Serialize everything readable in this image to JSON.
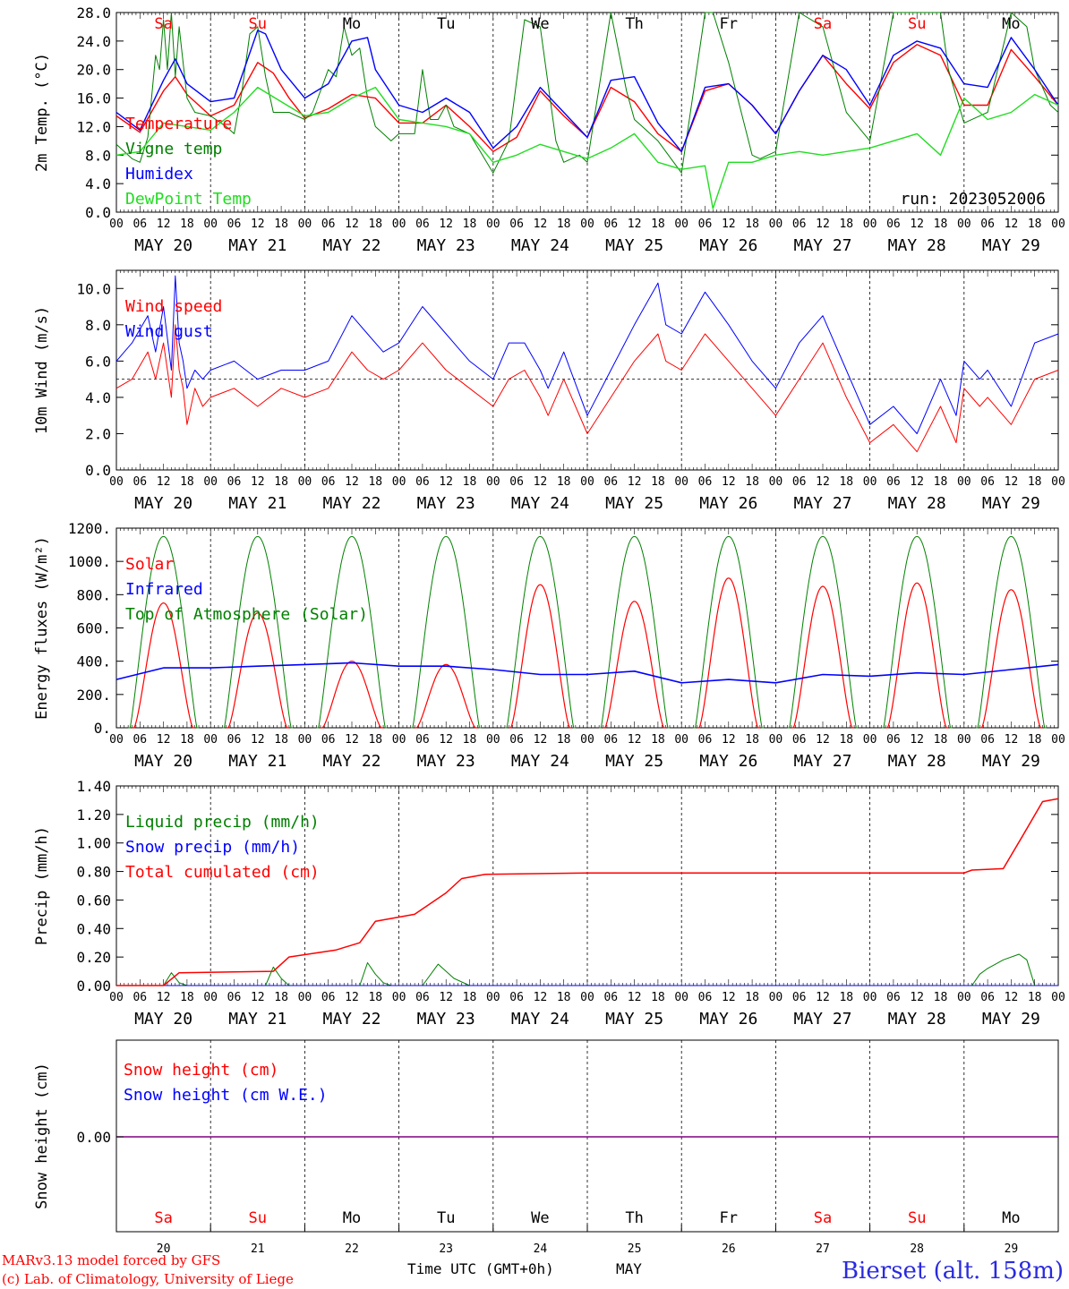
{
  "colors": {
    "red": "#ff0000",
    "blue": "#0000ff",
    "green": "#008000",
    "lime": "#22dd22",
    "purple": "#800080",
    "black": "#000000",
    "station": "#2a2adf"
  },
  "days": [
    "Sa",
    "Su",
    "Mo",
    "Tu",
    "We",
    "Th",
    "Fr",
    "Sa",
    "Su",
    "Mo"
  ],
  "day_colors": [
    "#ff0000",
    "#ff0000",
    "#000000",
    "#000000",
    "#000000",
    "#000000",
    "#000000",
    "#ff0000",
    "#ff0000",
    "#000000"
  ],
  "dates": [
    "MAY 20",
    "MAY 21",
    "MAY 22",
    "MAY 23",
    "MAY 24",
    "MAY 25",
    "MAY 26",
    "MAY 27",
    "MAY 28",
    "MAY 29"
  ],
  "day_numbers": [
    "20",
    "21",
    "22",
    "23",
    "24",
    "25",
    "26",
    "27",
    "28",
    "29"
  ],
  "hour_ticks": [
    "00",
    "06",
    "12",
    "18"
  ],
  "x_axis_title": "Time UTC (GMT+0h)",
  "month": "MAY",
  "station": "Bierset (alt. 158m)",
  "footer_line1": "MARv3.13 model forced by GFS",
  "footer_line2": "(c) Lab. of Climatology, University of Liege",
  "chart_data": [
    {
      "type": "line",
      "ylabel": "2m Temp. (°C)",
      "ylim": [
        0,
        28
      ],
      "yticks": [
        "0.0",
        "4.0",
        "8.0",
        "12.0",
        "16.0",
        "20.0",
        "24.0",
        "28.0"
      ],
      "run_label": "run: 2023052006",
      "x_unit": "hours since 2023-05-20 00 UTC",
      "series": [
        {
          "name": "Temperature",
          "color": "red",
          "x": [
            0,
            6,
            12,
            15,
            18,
            24,
            30,
            36,
            40,
            44,
            48,
            54,
            60,
            66,
            72,
            78,
            84,
            90,
            96,
            102,
            108,
            114,
            120,
            126,
            132,
            138,
            144,
            150,
            156,
            162,
            168,
            174,
            180,
            186,
            192,
            198,
            204,
            210,
            216,
            222,
            228,
            234,
            240
          ],
          "y": [
            13.5,
            11.2,
            17.0,
            19.0,
            16.5,
            13.5,
            15.0,
            21.0,
            19.5,
            16.0,
            13.2,
            14.5,
            16.5,
            16.0,
            12.5,
            12.5,
            15.0,
            12.0,
            8.5,
            10.5,
            17.0,
            13.5,
            10.5,
            17.5,
            15.5,
            11.0,
            8.5,
            17.0,
            18.0,
            15.0,
            11.0,
            17.0,
            22.0,
            18.0,
            14.5,
            21.0,
            23.5,
            22.0,
            15.0,
            15.0,
            22.8,
            19.0,
            15.0
          ]
        },
        {
          "name": "Vigne temp",
          "color": "green",
          "x": [
            0,
            4,
            6,
            8,
            10,
            11,
            12,
            13,
            14,
            15,
            16,
            18,
            20,
            24,
            28,
            30,
            32,
            34,
            36,
            38,
            40,
            44,
            48,
            50,
            54,
            56,
            58,
            60,
            62,
            64,
            66,
            68,
            70,
            72,
            76,
            78,
            80,
            82,
            84,
            86,
            90,
            96,
            100,
            104,
            108,
            112,
            114,
            118,
            120,
            126,
            130,
            132,
            134,
            138,
            144,
            150,
            152,
            156,
            162,
            164,
            168,
            174,
            180,
            184,
            186,
            192,
            198,
            204,
            210,
            212,
            216,
            222,
            228,
            232,
            234,
            238,
            240
          ],
          "y": [
            9.5,
            7.5,
            7.0,
            10.5,
            22.0,
            20.0,
            27.0,
            20.0,
            28.0,
            19.0,
            26.0,
            16.0,
            14.0,
            13.5,
            12.0,
            11.0,
            17.0,
            25.0,
            26.0,
            19.0,
            14.0,
            14.0,
            13.0,
            14.0,
            20.0,
            19.0,
            26.0,
            22.0,
            23.0,
            16.0,
            12.0,
            11.0,
            10.0,
            11.0,
            11.0,
            20.0,
            13.0,
            13.0,
            15.0,
            12.0,
            11.0,
            5.5,
            10.0,
            27.0,
            26.0,
            10.0,
            7.0,
            8.0,
            7.0,
            28.0,
            17.0,
            13.0,
            12.0,
            10.0,
            5.5,
            28.0,
            28.0,
            21.0,
            8.0,
            7.5,
            8.5,
            28.0,
            26.0,
            18.0,
            14.0,
            10.0,
            28.0,
            28.0,
            28.0,
            20.0,
            12.5,
            14.0,
            28.0,
            26.0,
            20.0,
            15.0,
            14.0
          ]
        },
        {
          "name": "Humidex",
          "color": "blue",
          "x": [
            0,
            6,
            12,
            15,
            18,
            24,
            30,
            36,
            38,
            42,
            48,
            54,
            60,
            64,
            66,
            72,
            78,
            84,
            90,
            96,
            102,
            108,
            114,
            120,
            126,
            132,
            138,
            144,
            150,
            156,
            162,
            168,
            174,
            180,
            186,
            192,
            198,
            204,
            210,
            216,
            222,
            228,
            234,
            240
          ],
          "y": [
            14.0,
            11.5,
            18.5,
            21.5,
            18.0,
            15.5,
            16.0,
            25.5,
            25.0,
            20.0,
            16.0,
            18.0,
            24.0,
            24.5,
            20.0,
            15.0,
            14.0,
            16.0,
            14.0,
            9.0,
            12.0,
            17.5,
            14.0,
            10.5,
            18.5,
            19.0,
            12.5,
            8.5,
            17.5,
            18.0,
            15.0,
            11.0,
            17.0,
            22.0,
            20.0,
            15.0,
            22.0,
            24.0,
            23.0,
            18.0,
            17.5,
            24.5,
            20.0,
            15.0
          ]
        },
        {
          "name": "DewPoint Temp",
          "color": "lime",
          "x": [
            0,
            6,
            12,
            18,
            24,
            30,
            36,
            42,
            48,
            54,
            60,
            66,
            72,
            78,
            84,
            90,
            96,
            102,
            108,
            114,
            120,
            126,
            132,
            138,
            144,
            150,
            152,
            156,
            162,
            168,
            174,
            180,
            186,
            192,
            198,
            204,
            210,
            216,
            222,
            228,
            234,
            240
          ],
          "y": [
            8.0,
            8.5,
            12.5,
            12.0,
            11.5,
            14.0,
            17.5,
            15.5,
            13.5,
            14.0,
            16.0,
            17.5,
            13.0,
            12.5,
            12.0,
            11.0,
            7.0,
            8.0,
            9.5,
            8.5,
            7.5,
            9.0,
            11.0,
            7.0,
            6.0,
            6.5,
            0.5,
            7.0,
            7.0,
            8.0,
            8.5,
            8.0,
            8.5,
            9.0,
            10.0,
            11.0,
            8.0,
            16.0,
            13.0,
            14.0,
            16.5,
            15.0
          ]
        }
      ]
    },
    {
      "type": "line",
      "ylabel": "10m Wind (m/s)",
      "ylim": [
        0,
        11
      ],
      "yticks": [
        "0.0",
        "2.0",
        "4.0",
        "6.0",
        "8.0",
        "10.0"
      ],
      "reference_line": 5,
      "series": [
        {
          "name": "Wind speed",
          "color": "red",
          "x": [
            0,
            4,
            8,
            10,
            12,
            14,
            15,
            16,
            17,
            18,
            20,
            22,
            24,
            30,
            36,
            42,
            48,
            54,
            60,
            64,
            68,
            72,
            78,
            84,
            90,
            96,
            100,
            104,
            108,
            110,
            114,
            120,
            126,
            132,
            138,
            140,
            144,
            150,
            156,
            162,
            168,
            174,
            180,
            186,
            192,
            198,
            204,
            210,
            214,
            216,
            220,
            222,
            228,
            234,
            240
          ],
          "y": [
            4.5,
            5.0,
            6.5,
            5.0,
            7.0,
            4.0,
            8.0,
            5.5,
            4.5,
            2.5,
            4.5,
            3.5,
            4.0,
            4.5,
            3.5,
            4.5,
            4.0,
            4.5,
            6.5,
            5.5,
            5.0,
            5.5,
            7.0,
            5.5,
            4.5,
            3.5,
            5.0,
            5.5,
            4.0,
            3.0,
            5.0,
            2.0,
            4.0,
            6.0,
            7.5,
            6.0,
            5.5,
            7.5,
            6.0,
            4.5,
            3.0,
            5.0,
            7.0,
            4.0,
            1.5,
            2.5,
            1.0,
            3.5,
            1.5,
            4.5,
            3.5,
            4.0,
            2.5,
            5.0,
            5.5
          ]
        },
        {
          "name": "Wind gust",
          "color": "blue",
          "x": [
            0,
            4,
            8,
            10,
            12,
            14,
            15,
            16,
            17,
            18,
            20,
            22,
            24,
            30,
            36,
            42,
            48,
            54,
            60,
            64,
            68,
            72,
            78,
            84,
            90,
            96,
            100,
            104,
            108,
            110,
            114,
            120,
            126,
            132,
            138,
            140,
            144,
            150,
            156,
            162,
            168,
            174,
            180,
            186,
            192,
            198,
            204,
            210,
            214,
            216,
            220,
            222,
            228,
            234,
            240
          ],
          "y": [
            6.0,
            7.0,
            8.5,
            6.5,
            9.0,
            5.5,
            10.7,
            7.0,
            6.0,
            4.5,
            5.5,
            5.0,
            5.5,
            6.0,
            5.0,
            5.5,
            5.5,
            6.0,
            8.5,
            7.5,
            6.5,
            7.0,
            9.0,
            7.5,
            6.0,
            5.0,
            7.0,
            7.0,
            5.5,
            4.5,
            6.5,
            3.0,
            5.5,
            8.0,
            10.3,
            8.0,
            7.5,
            9.8,
            8.0,
            6.0,
            4.5,
            7.0,
            8.5,
            5.5,
            2.5,
            3.5,
            2.0,
            5.0,
            3.0,
            6.0,
            5.0,
            5.5,
            3.5,
            7.0,
            7.5
          ]
        }
      ]
    },
    {
      "type": "line",
      "ylabel": "Energy fluxes (W/m²)",
      "ylim": [
        0,
        1200
      ],
      "yticks": [
        "0.",
        "200.",
        "400.",
        "600.",
        "800.",
        "1000.",
        "1200."
      ],
      "series": [
        {
          "name": "Solar",
          "color": "red",
          "peaks": [
            750,
            690,
            400,
            380,
            860,
            760,
            900,
            850,
            870,
            830
          ]
        },
        {
          "name": "Infrared",
          "color": "blue",
          "x": [
            0,
            12,
            24,
            36,
            48,
            60,
            72,
            84,
            96,
            108,
            120,
            132,
            144,
            156,
            168,
            180,
            192,
            204,
            216,
            228,
            240
          ],
          "y": [
            290,
            360,
            360,
            370,
            380,
            390,
            370,
            370,
            350,
            320,
            320,
            340,
            270,
            290,
            270,
            320,
            310,
            330,
            320,
            350,
            380
          ]
        },
        {
          "name": "Top of Atmosphere (Solar)",
          "color": "green",
          "peak": 1150
        }
      ]
    },
    {
      "type": "line",
      "ylabel": "Precip (mm/h)",
      "ylim": [
        0,
        1.4
      ],
      "yticks": [
        "0.00",
        "0.20",
        "0.40",
        "0.60",
        "0.80",
        "1.00",
        "1.20",
        "1.40"
      ],
      "series": [
        {
          "name": "Liquid precip (mm/h)",
          "color": "green",
          "x": [
            0,
            12,
            14,
            16,
            18,
            38,
            40,
            42,
            44,
            62,
            64,
            66,
            68,
            70,
            78,
            82,
            86,
            90,
            92,
            218,
            220,
            222,
            226,
            230,
            232,
            234,
            240
          ],
          "y": [
            0,
            0,
            0.09,
            0.02,
            0,
            0,
            0.13,
            0.05,
            0,
            0,
            0.16,
            0.08,
            0.02,
            0,
            0,
            0.15,
            0.05,
            0,
            0,
            0,
            0.08,
            0.12,
            0.18,
            0.22,
            0.18,
            0,
            0
          ]
        },
        {
          "name": "Snow precip (mm/h)",
          "color": "blue",
          "x": [
            0,
            240
          ],
          "y": [
            0,
            0
          ]
        },
        {
          "name": "Total cumulated (cm)",
          "color": "red",
          "x": [
            0,
            12,
            16,
            40,
            44,
            56,
            62,
            66,
            76,
            84,
            88,
            94,
            120,
            150,
            180,
            216,
            218,
            226,
            232,
            236,
            240
          ],
          "y": [
            0,
            0,
            0.09,
            0.1,
            0.2,
            0.25,
            0.3,
            0.45,
            0.5,
            0.65,
            0.75,
            0.78,
            0.79,
            0.79,
            0.79,
            0.79,
            0.81,
            0.82,
            1.1,
            1.29,
            1.31
          ]
        }
      ]
    },
    {
      "type": "line",
      "ylabel": "Snow height (cm)",
      "yticks": [
        "0.00"
      ],
      "series": [
        {
          "name": "Snow height (cm)",
          "color": "red",
          "x": [
            0,
            240
          ],
          "y": [
            0,
            0
          ]
        },
        {
          "name": "Snow height (cm W.E.)",
          "color": "blue",
          "x": [
            0,
            240
          ],
          "y": [
            0,
            0
          ]
        }
      ]
    }
  ]
}
